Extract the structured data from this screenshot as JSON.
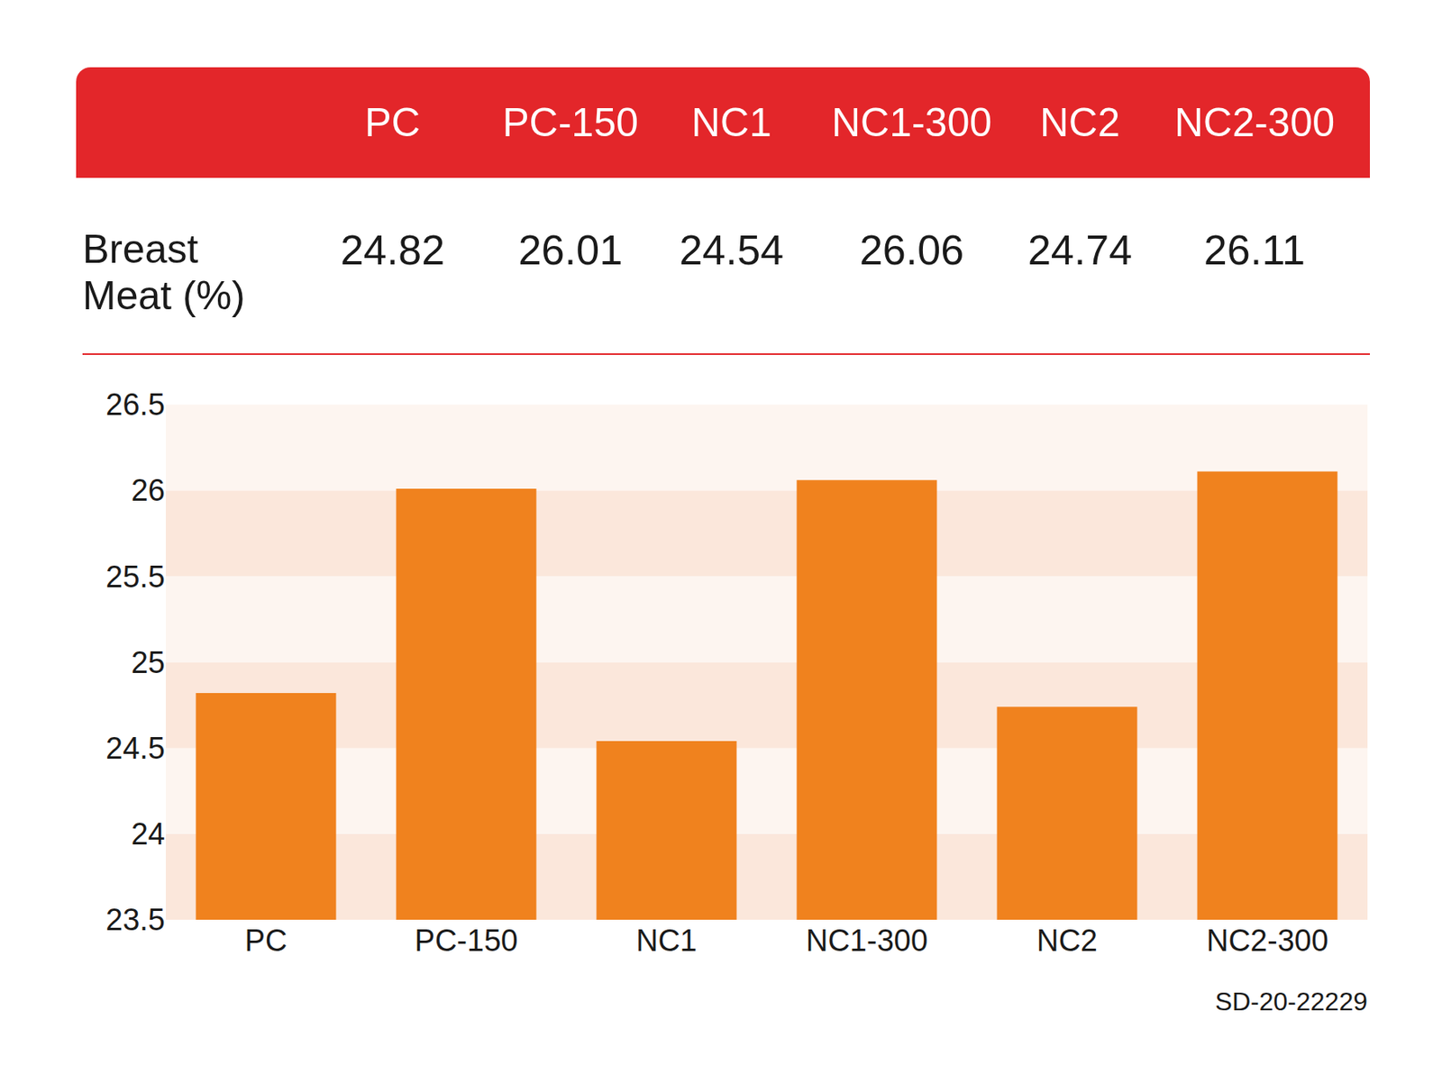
{
  "chart_data": {
    "type": "bar",
    "categories": [
      "PC",
      "PC-150",
      "NC1",
      "NC1-300",
      "NC2",
      "NC2-300"
    ],
    "values": [
      24.82,
      26.01,
      24.54,
      26.06,
      24.74,
      26.11
    ],
    "color": "#F0821E",
    "ylim": [
      23.5,
      26.5
    ],
    "yticks": [
      23.5,
      24,
      24.5,
      25,
      25.5,
      26,
      26.5
    ],
    "grid": true
  },
  "table": {
    "row_label": "Breast Meat (%)"
  },
  "footnote": "SD-20-22229"
}
